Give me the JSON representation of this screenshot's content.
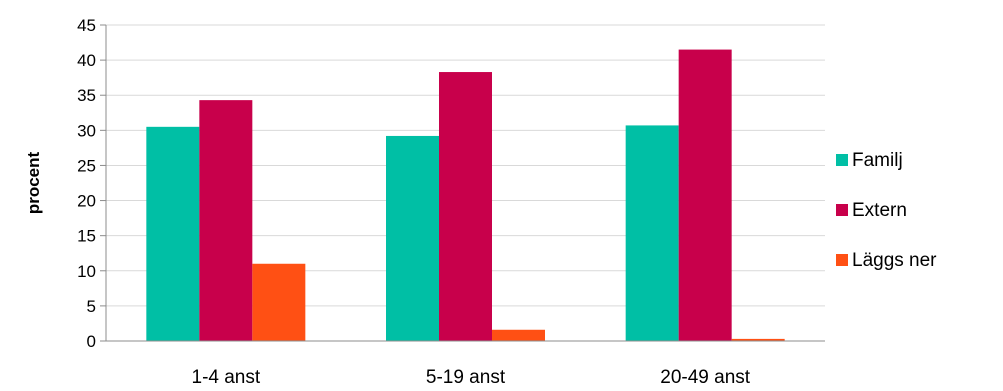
{
  "chart_data": {
    "type": "bar",
    "title": "",
    "xlabel": "",
    "ylabel": "procent",
    "ylim": [
      0,
      45
    ],
    "ytick_step": 5,
    "yticks": [
      "0",
      "5",
      "10",
      "15",
      "20",
      "25",
      "30",
      "35",
      "40",
      "45"
    ],
    "grid": true,
    "legend_position": "right",
    "categories": [
      "1-4 anst",
      "5-19 anst",
      "20-49 anst"
    ],
    "series": [
      {
        "name": "Familj",
        "color": "#00BFA5",
        "values": [
          30.5,
          29.2,
          30.7
        ]
      },
      {
        "name": "Extern",
        "color": "#C8004B",
        "values": [
          34.3,
          38.3,
          41.5
        ]
      },
      {
        "name": "Läggs ner",
        "color": "#FF5014",
        "values": [
          11.0,
          1.6,
          0.3
        ]
      }
    ]
  }
}
